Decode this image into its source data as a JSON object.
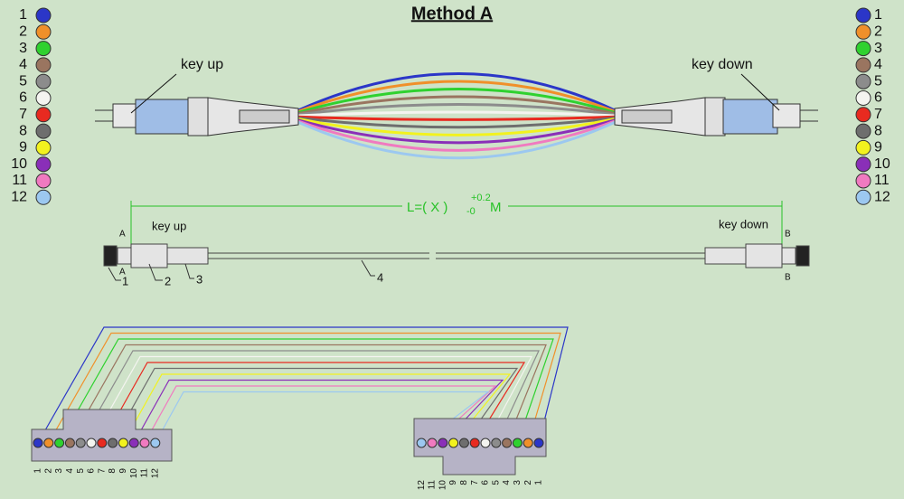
{
  "title": "Method A",
  "fibers": [
    {
      "label": "1",
      "color": "#2b36c8"
    },
    {
      "label": "2",
      "color": "#f0902a"
    },
    {
      "label": "3",
      "color": "#2fd12f"
    },
    {
      "label": "4",
      "color": "#9a7560"
    },
    {
      "label": "5",
      "color": "#8c8c8c"
    },
    {
      "label": "6",
      "color": "#f4f4f0"
    },
    {
      "label": "7",
      "color": "#e82a20"
    },
    {
      "label": "8",
      "color": "#6e6e6e"
    },
    {
      "label": "9",
      "color": "#f2f21e"
    },
    {
      "label": "10",
      "color": "#8a2fb8"
    },
    {
      "label": "11",
      "color": "#f07ac0"
    },
    {
      "label": "12",
      "color": "#9cc8f0"
    }
  ],
  "top_view": {
    "left_label": "key up",
    "right_label": "key down"
  },
  "drawing": {
    "length_label": "L=( X )",
    "tolerance_upper": "+0.2",
    "tolerance_lower": "-0",
    "unit": "M",
    "left_key": "key up",
    "right_key": "key down",
    "end_a": "A",
    "end_b": "B",
    "parts": [
      "1",
      "2",
      "3",
      "4"
    ]
  }
}
